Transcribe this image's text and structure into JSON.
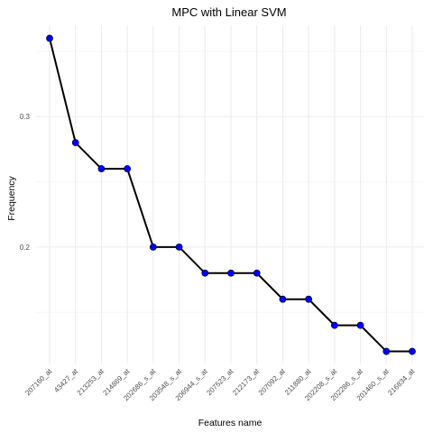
{
  "chart_data": {
    "type": "line",
    "title": "MPC with Linear SVM",
    "xlabel": "Features name",
    "ylabel": "Frequency",
    "categories": [
      "207160_at",
      "43427_at",
      "213253_at",
      "214869_at",
      "202686_s_at",
      "203548_s_at",
      "206944_s_at",
      "207523_at",
      "212173_at",
      "207092_at",
      "211880_at",
      "202208_s_at",
      "202286_s_at",
      "201460_s_at",
      "216834_at"
    ],
    "values": [
      0.36,
      0.28,
      0.26,
      0.26,
      0.2,
      0.2,
      0.18,
      0.18,
      0.18,
      0.16,
      0.16,
      0.14,
      0.14,
      0.12,
      0.12
    ],
    "ylim": [
      0.11,
      0.37
    ],
    "yticks": [
      0.2,
      0.3
    ],
    "grid": true,
    "legend": "none",
    "colors": {
      "line": "#000000",
      "marker": "#0000ff",
      "grid": "#ebebeb"
    }
  }
}
